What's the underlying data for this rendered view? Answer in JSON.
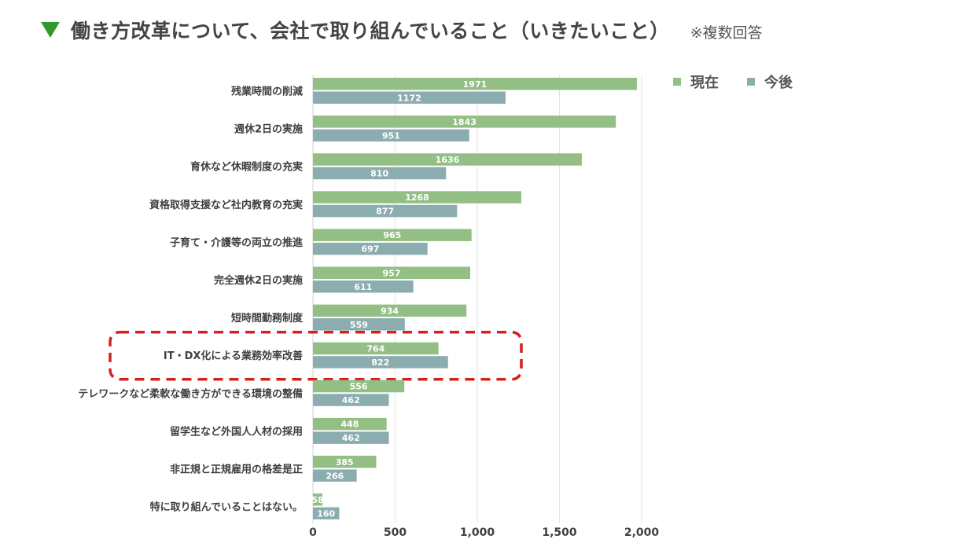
{
  "header": {
    "title": "働き方改革について、会社で取り組んでいること（いきたいこと）",
    "note": "※複数回答"
  },
  "legend": [
    {
      "name": "現在",
      "color": "#93bf85"
    },
    {
      "name": "今後",
      "color": "#8badb0"
    }
  ],
  "highlight_category": "IT・DX化による業務効率改善",
  "chart_data": {
    "type": "bar",
    "orientation": "horizontal",
    "categories": [
      "残業時間の削減",
      "週休2日の実施",
      "育休など休暇制度の充実",
      "資格取得支援など社内教育の充実",
      "子育て・介護等の両立の推進",
      "完全週休2日の実施",
      "短時間勤務制度",
      "IT・DX化による業務効率改善",
      "テレワークなど柔軟な働き方ができる環境の整備",
      "留学生など外国人人材の採用",
      "非正規と正規雇用の格差是正",
      "特に取り組んでいることはない。"
    ],
    "series": [
      {
        "name": "現在",
        "color": "#93bf85",
        "values": [
          1971,
          1843,
          1636,
          1268,
          965,
          957,
          934,
          764,
          556,
          448,
          385,
          58
        ]
      },
      {
        "name": "今後",
        "color": "#8badb0",
        "values": [
          1172,
          951,
          810,
          877,
          697,
          611,
          559,
          822,
          462,
          462,
          266,
          160
        ]
      }
    ],
    "xlim": [
      0,
      2000
    ],
    "xticks": [
      0,
      500,
      1000,
      1500,
      2000
    ],
    "xtick_labels": [
      "0",
      "500",
      "1,000",
      "1,500",
      "2,000"
    ],
    "grid": true,
    "legend_position": "top-right"
  }
}
